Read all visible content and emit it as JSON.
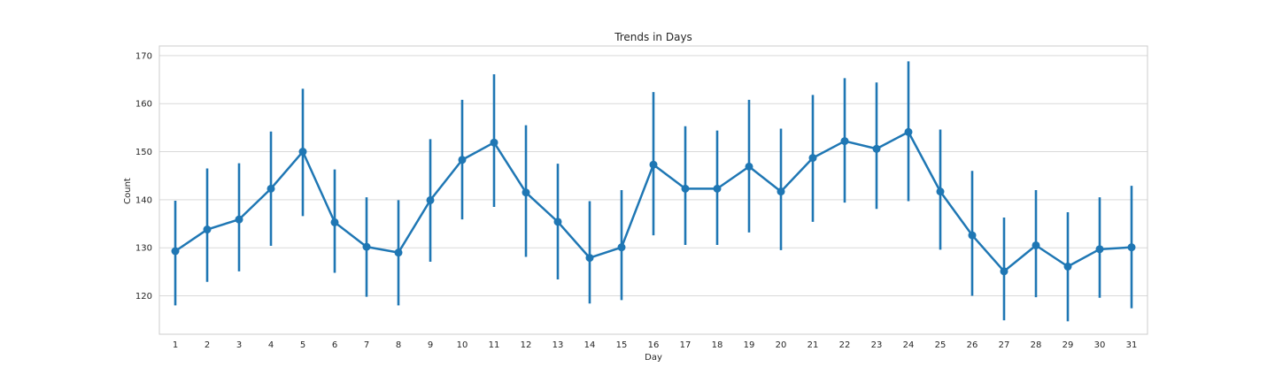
{
  "chart_data": {
    "type": "line",
    "title": "Trends in Days",
    "xlabel": "Day",
    "ylabel": "Count",
    "ylim": [
      112,
      172
    ],
    "yticks": [
      120,
      130,
      140,
      150,
      160,
      170
    ],
    "grid": true,
    "color": "#1f77b4",
    "x": [
      "1",
      "2",
      "3",
      "4",
      "5",
      "6",
      "7",
      "8",
      "9",
      "10",
      "11",
      "12",
      "13",
      "14",
      "15",
      "16",
      "17",
      "18",
      "19",
      "20",
      "21",
      "22",
      "23",
      "24",
      "25",
      "26",
      "27",
      "28",
      "29",
      "30",
      "31"
    ],
    "series": [
      {
        "values": [
          129.3,
          133.8,
          135.9,
          142.3,
          150.0,
          135.3,
          130.2,
          129.0,
          139.9,
          148.3,
          151.9,
          141.5,
          135.4,
          127.9,
          130.1,
          147.3,
          142.3,
          142.3,
          146.9,
          141.7,
          148.7,
          152.2,
          150.6,
          154.1,
          141.7,
          132.6,
          125.1,
          130.5,
          126.1,
          129.7,
          130.1
        ],
        "ci_low": [
          118.0,
          122.9,
          125.1,
          130.4,
          136.6,
          124.8,
          119.8,
          118.0,
          127.1,
          135.9,
          138.5,
          128.1,
          123.4,
          118.4,
          119.1,
          132.6,
          130.6,
          130.6,
          133.2,
          129.5,
          135.4,
          139.4,
          138.1,
          139.7,
          129.6,
          120.0,
          114.9,
          119.7,
          114.7,
          119.6,
          117.4
        ],
        "ci_high": [
          139.8,
          146.5,
          147.6,
          154.2,
          163.1,
          146.3,
          140.5,
          139.9,
          152.6,
          160.8,
          166.1,
          155.5,
          147.5,
          139.7,
          142.0,
          162.4,
          155.3,
          154.4,
          160.8,
          154.8,
          161.8,
          165.3,
          164.4,
          168.8,
          154.6,
          146.0,
          136.3,
          142.0,
          137.4,
          140.5,
          142.9
        ]
      }
    ]
  }
}
